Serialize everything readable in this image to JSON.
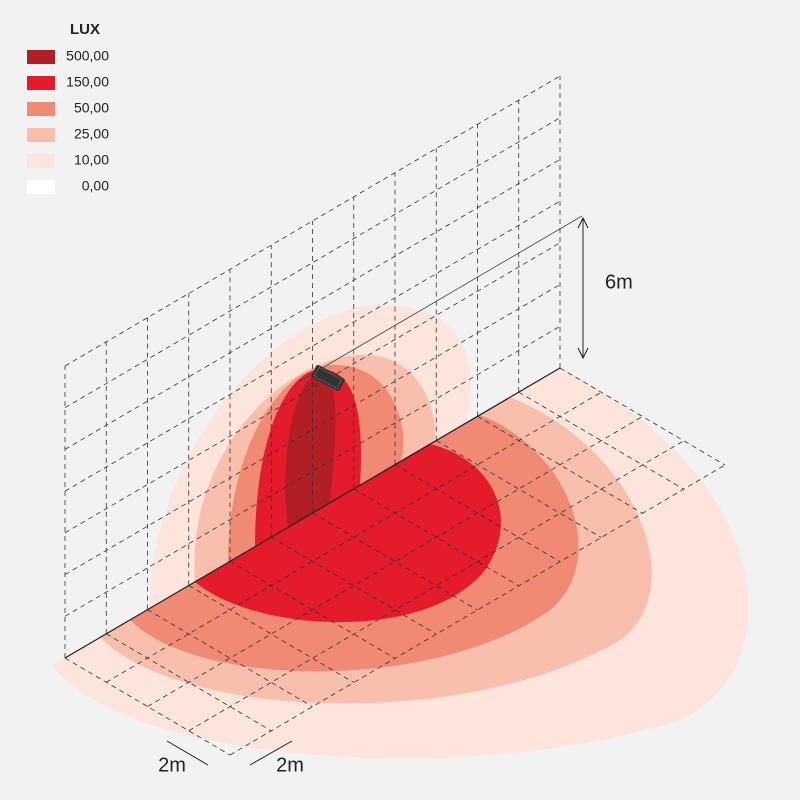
{
  "legend": {
    "title": "LUX",
    "items": [
      {
        "label": "500,00",
        "color": "#b11f24"
      },
      {
        "label": "150,00",
        "color": "#e31b2b"
      },
      {
        "label": "50,00",
        "color": "#f08a75"
      },
      {
        "label": "25,00",
        "color": "#f8bfad"
      },
      {
        "label": "10,00",
        "color": "#fde4dc"
      },
      {
        "label": "0,00",
        "color": "#ffffff"
      }
    ]
  },
  "dimensions": {
    "height": "6m",
    "grid_x": "2m",
    "grid_y": "2m"
  }
}
